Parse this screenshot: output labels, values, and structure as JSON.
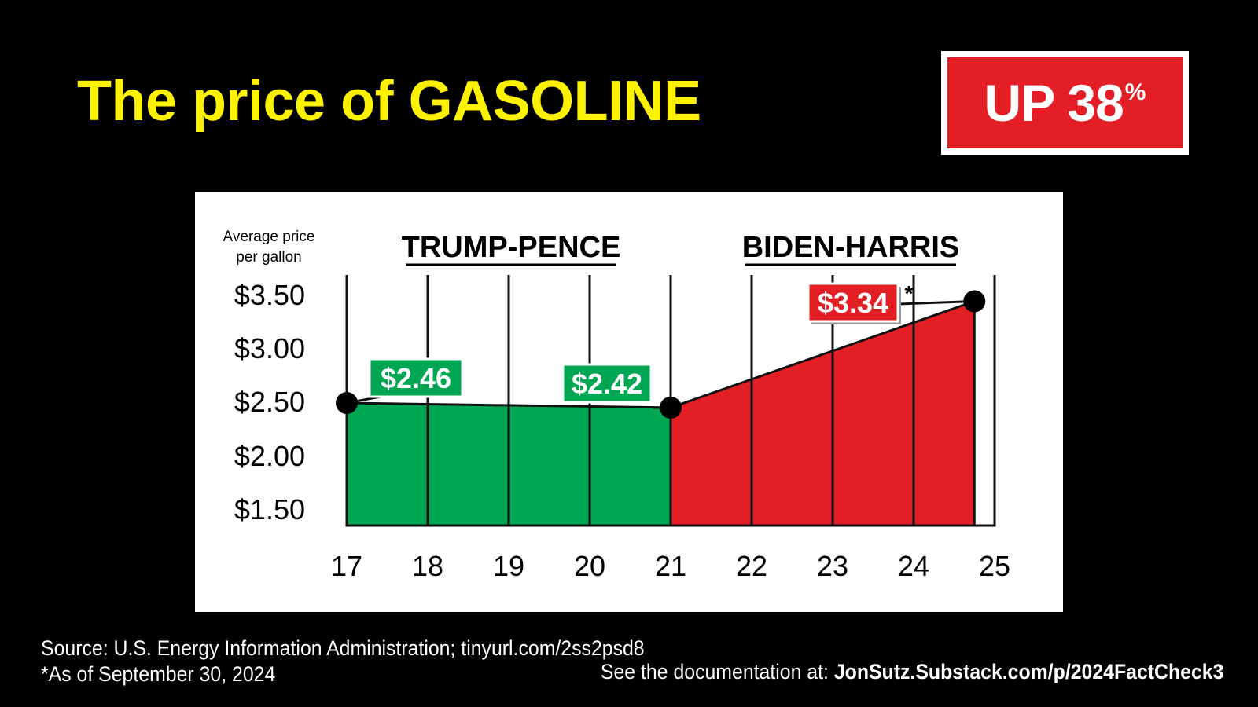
{
  "title": "The price of GASOLINE",
  "badge": {
    "text": "UP 38",
    "suffix": "%"
  },
  "colors": {
    "title": "#FFF200",
    "trump": "#00A651",
    "biden": "#E31E24",
    "badge": "#E31E24"
  },
  "chart_data": {
    "type": "area",
    "ylabel": "Average price per gallon",
    "ylabel_lines": [
      "Average price",
      "per gallon"
    ],
    "x_ticks": [
      "17",
      "18",
      "19",
      "20",
      "21",
      "22",
      "23",
      "24",
      "25"
    ],
    "y_ticks": [
      "$3.50",
      "$3.00",
      "$2.50",
      "$2.00",
      "$1.50"
    ],
    "y_tick_values": [
      3.5,
      3.0,
      2.5,
      2.0,
      1.5
    ],
    "ylim": [
      1.4,
      3.5
    ],
    "xlim": [
      17,
      25
    ],
    "grid": "vertical",
    "series": [
      {
        "name": "TRUMP-PENCE",
        "color": "#00A651",
        "x": [
          17,
          21
        ],
        "values": [
          2.46,
          2.42
        ]
      },
      {
        "name": "BIDEN-HARRIS",
        "color": "#E31E24",
        "x": [
          21,
          24.75
        ],
        "values": [
          2.42,
          3.34
        ]
      }
    ],
    "annotations": [
      {
        "text": "$2.46",
        "x": 17,
        "y": 2.46,
        "color": "#00A651"
      },
      {
        "text": "$2.42",
        "x": 21,
        "y": 2.42,
        "color": "#00A651"
      },
      {
        "text": "$3.34",
        "x": 24.75,
        "y": 3.34,
        "color": "#E31E24",
        "note": "*"
      }
    ]
  },
  "footer": {
    "source": "Source: U.S. Energy Information Administration; tinyurl.com/2ss2psd8",
    "asof": "*As of September 30, 2024",
    "doc_prefix": "See the documentation at: ",
    "doc_link": "JonSutz.Substack.com/p/2024FactCheck3"
  }
}
